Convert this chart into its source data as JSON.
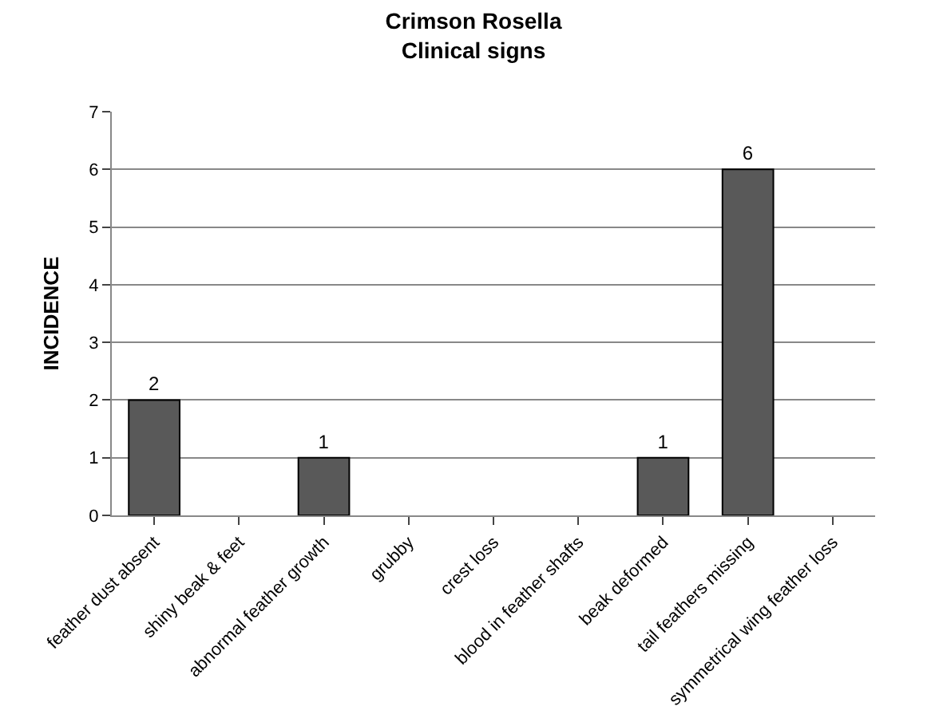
{
  "chart_data": {
    "type": "bar",
    "title": "Crimson Rosella",
    "subtitle": "Clinical signs",
    "ylabel": "INCIDENCE",
    "categories": [
      "feather dust absent",
      "shiny beak & feet",
      "abnormal feather growth",
      "grubby",
      "crest loss",
      "blood in feather shafts",
      "beak deformed",
      "tail feathers missing",
      "symmetrical wing feather loss"
    ],
    "values": [
      2,
      0,
      1,
      0,
      0,
      0,
      1,
      6,
      0
    ],
    "value_labels": [
      "2",
      null,
      "1",
      null,
      null,
      null,
      "1",
      "6",
      null
    ],
    "color": "#595959",
    "ylim": [
      0,
      7
    ],
    "yticks": [
      0,
      1,
      2,
      3,
      4,
      5,
      6,
      7
    ],
    "grid": "y"
  }
}
